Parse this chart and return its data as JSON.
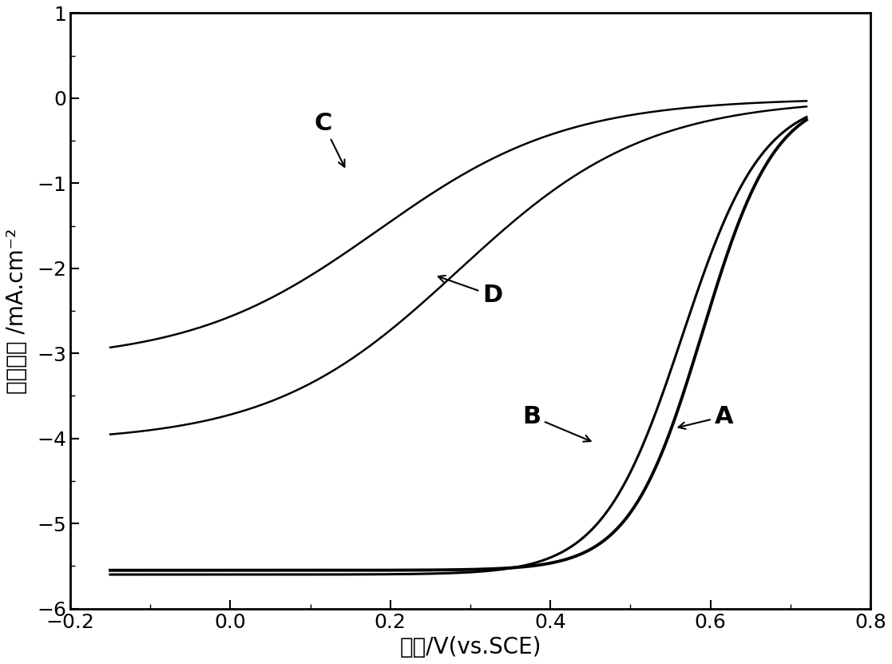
{
  "xlim": [
    -0.2,
    0.8
  ],
  "ylim": [
    -6,
    1
  ],
  "xticks": [
    -0.2,
    0.0,
    0.2,
    0.4,
    0.6,
    0.8
  ],
  "yticks": [
    -6,
    -5,
    -4,
    -3,
    -2,
    -1,
    0,
    1
  ],
  "xlabel": "电压/V(vs.SCE)",
  "ylabel": "电流密度 /mA.cm⁻²",
  "line_color": "#000000",
  "background": "#ffffff",
  "label_fontsize": 20,
  "tick_fontsize": 18,
  "ann_fontsize": 22
}
